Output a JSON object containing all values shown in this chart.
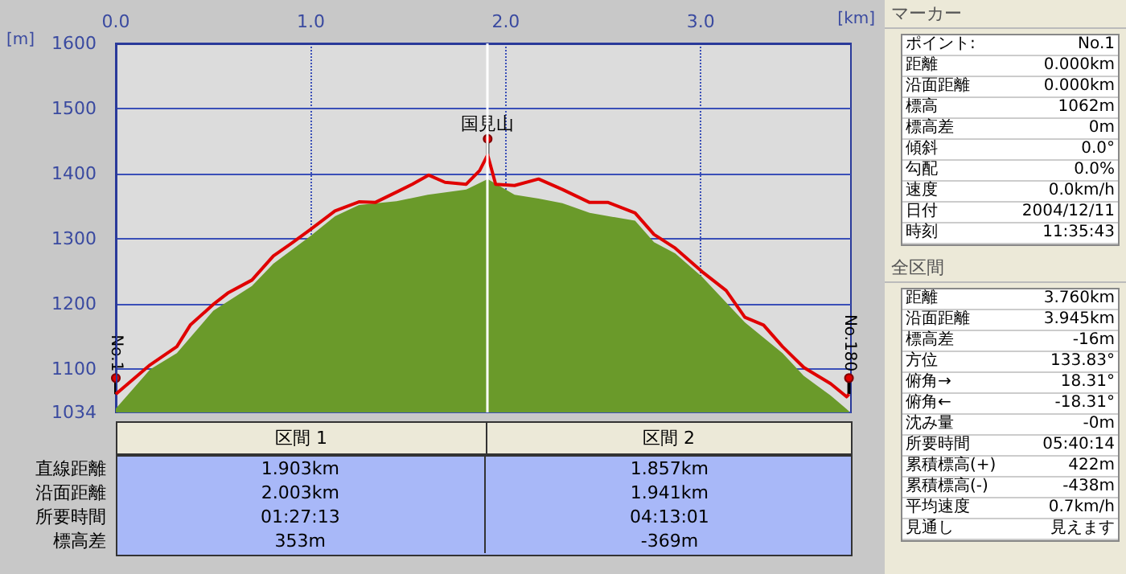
{
  "chart_data": [
    {
      "type": "line",
      "xlabel": "[km]",
      "ylabel": "[m]",
      "xlim": [
        0,
        3.77
      ],
      "ylim": [
        1034,
        1600
      ],
      "xticks": [
        {
          "value": 0,
          "label": "0.0"
        },
        {
          "value": 1,
          "label": "1.0"
        },
        {
          "value": 2,
          "label": "2.0"
        },
        {
          "value": 3,
          "label": "3.0"
        }
      ],
      "yticks": [
        1034,
        1100,
        1200,
        1300,
        1400,
        1500,
        1600
      ],
      "grid": true,
      "marker": "none",
      "series": [
        {
          "type": "area",
          "color": "#6a9a2a",
          "x": [
            0,
            0.176,
            0.313,
            0.5,
            0.698,
            0.808,
            1.0,
            1.124,
            1.247,
            1.44,
            1.6,
            1.797,
            1.907,
            2.045,
            2.168,
            2.29,
            2.43,
            2.663,
            2.76,
            2.869,
            3.006,
            3.226,
            3.419,
            3.528,
            3.666,
            3.76
          ],
          "values": [
            1040,
            1100,
            1125,
            1190,
            1228,
            1262,
            1305,
            1335,
            1352,
            1358,
            1368,
            1376,
            1392,
            1368,
            1362,
            1355,
            1340,
            1328,
            1295,
            1278,
            1242,
            1172,
            1125,
            1090,
            1060,
            1036
          ]
        },
        {
          "type": "line",
          "color": "#e00000",
          "x": [
            0,
            0.176,
            0.313,
            0.382,
            0.505,
            0.574,
            0.698,
            0.808,
            0.904,
            1.0,
            1.124,
            1.247,
            1.33,
            1.44,
            1.52,
            1.605,
            1.688,
            1.797,
            1.866,
            1.907,
            1.948,
            2.045,
            2.168,
            2.29,
            2.43,
            2.525,
            2.663,
            2.76,
            2.869,
            3.006,
            3.13,
            3.226,
            3.322,
            3.419,
            3.528,
            3.666,
            3.748,
            3.76
          ],
          "values": [
            1062,
            1107,
            1135,
            1168,
            1201,
            1217,
            1237,
            1274,
            1294,
            1315,
            1343,
            1357,
            1356,
            1372,
            1384,
            1398,
            1387,
            1384,
            1405,
            1429,
            1384,
            1382,
            1392,
            1376,
            1356,
            1356,
            1340,
            1307,
            1286,
            1250,
            1221,
            1180,
            1168,
            1135,
            1103,
            1078,
            1058,
            1062
          ]
        }
      ],
      "ref_lines": [
        {
          "axis": "x",
          "value": 1.903,
          "color": "#ffffff"
        }
      ],
      "annotations": [
        {
          "text": "No.1",
          "x": 0,
          "y": 1062
        },
        {
          "text": "国見山",
          "x": 1.907,
          "y": 1429
        },
        {
          "text": "No.180",
          "x": 3.76,
          "y": 1062
        }
      ]
    },
    {
      "type": "other",
      "categories": [
        "区間 1",
        "区間 2"
      ],
      "annotations": [
        "直線距離",
        "1.903km",
        "1.857km",
        "沿面距離",
        "2.003km",
        "1.941km",
        "所要時間",
        "01:27:13",
        "04:13:01",
        "標高差",
        "353m",
        "-369m"
      ]
    },
    {
      "type": "other",
      "title": "マーカー",
      "annotations": [
        "ポイント:",
        "No.1",
        "距離",
        "0.000km",
        "沿面距離",
        "0.000km",
        "標高",
        "1062m",
        "標高差",
        "0m",
        "傾斜",
        "0.0°",
        "勾配",
        "0.0%",
        "速度",
        "0.0km/h",
        "日付",
        "2004/12/11",
        "時刻",
        "11:35:43"
      ]
    },
    {
      "type": "other",
      "title": "全区間",
      "annotations": [
        "距離",
        "3.760km",
        "沿面距離",
        "3.945km",
        "標高差",
        "-16m",
        "方位",
        "133.83°",
        "俯角→",
        "18.31°",
        "俯角←",
        "-18.31°",
        "沈み量",
        "-0m",
        "所要時間",
        "05:40:14",
        "累積標高(+)",
        "422m",
        "累積標高(-)",
        "-438m",
        "平均速度",
        "0.7km/h",
        "見通し",
        "見えます"
      ]
    }
  ]
}
